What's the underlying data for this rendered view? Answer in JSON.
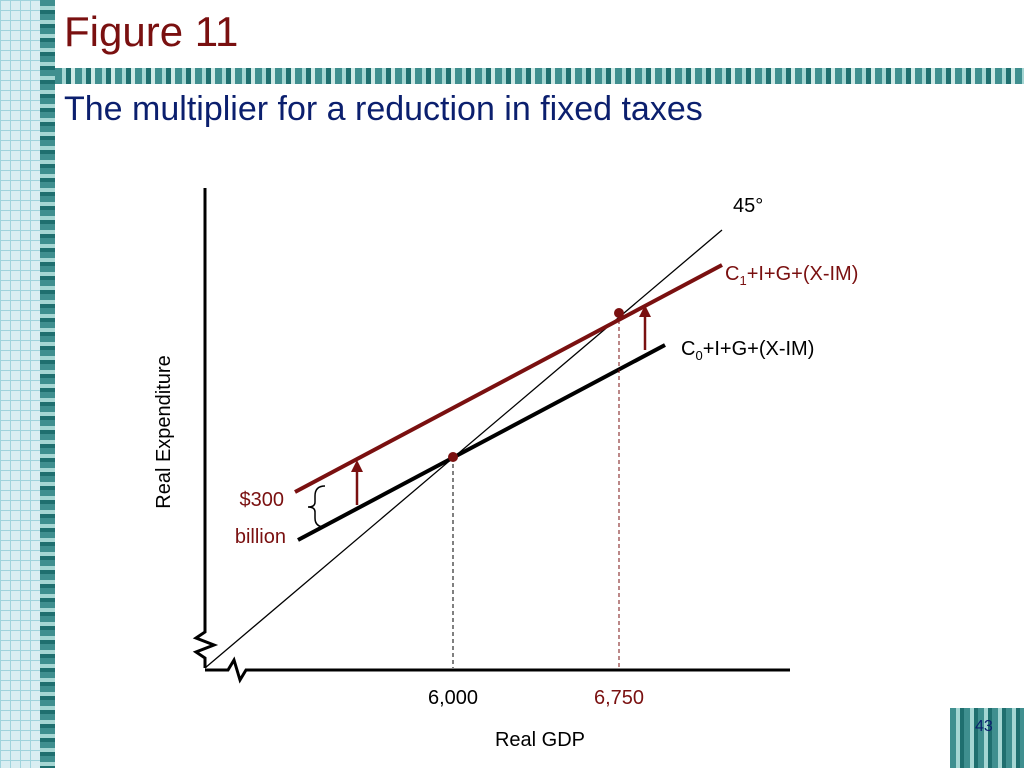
{
  "header": {
    "figure": "Figure 11",
    "title": "The multiplier for a reduction in fixed taxes"
  },
  "diagram": {
    "y_axis_label": "Real Expenditure",
    "x_axis_label": "Real GDP",
    "line_45": "45°",
    "c1": {
      "prefix": "C",
      "sub": "1",
      "rest": "+I+G+(X-IM)"
    },
    "c0": {
      "prefix": "C",
      "sub": "0",
      "rest": "+I+G+(X-IM)"
    },
    "shift_amount": "$300",
    "shift_unit": "billion",
    "x_marks": [
      "6,000",
      "6,750"
    ]
  },
  "footer": {
    "page": "43"
  }
}
